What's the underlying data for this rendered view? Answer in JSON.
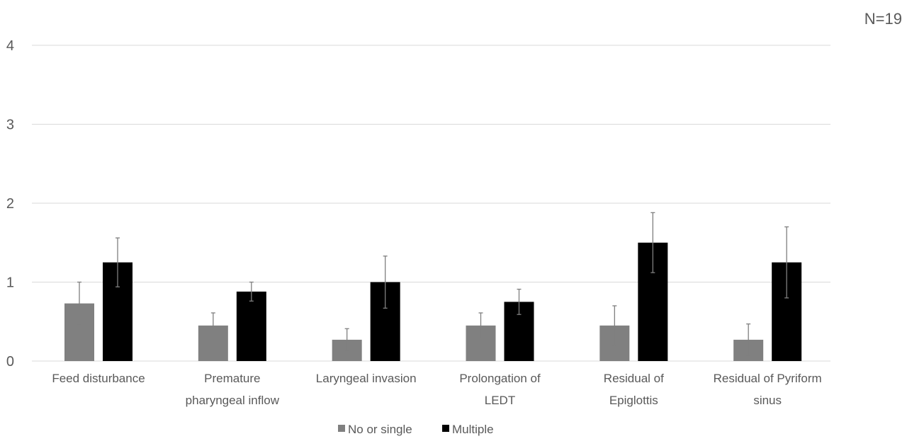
{
  "note": "N=19",
  "chart_data": {
    "type": "bar",
    "title": "",
    "xlabel": "",
    "ylabel": "",
    "ylim": [
      0,
      4
    ],
    "yticks": [
      0,
      1,
      2,
      3,
      4
    ],
    "grid": true,
    "legend_position": "bottom",
    "categories": [
      [
        "Feed disturbance"
      ],
      [
        "Premature",
        "pharyngeal inflow"
      ],
      [
        "Laryngeal invasion"
      ],
      [
        "Prolongation of",
        "LEDT"
      ],
      [
        "Residual of",
        "Epiglottis"
      ],
      [
        "Residual of Pyriform",
        "sinus"
      ]
    ],
    "series": [
      {
        "name": "No or single",
        "color": "#808080",
        "values": [
          0.73,
          0.45,
          0.27,
          0.45,
          0.45,
          0.27
        ],
        "errors": [
          0.27,
          0.16,
          0.14,
          0.16,
          0.25,
          0.2
        ]
      },
      {
        "name": "Multiple",
        "color": "#000000",
        "values": [
          1.25,
          0.88,
          1.0,
          0.75,
          1.5,
          1.25
        ],
        "errors": [
          0.31,
          0.12,
          0.33,
          0.16,
          0.38,
          0.45
        ]
      }
    ]
  }
}
